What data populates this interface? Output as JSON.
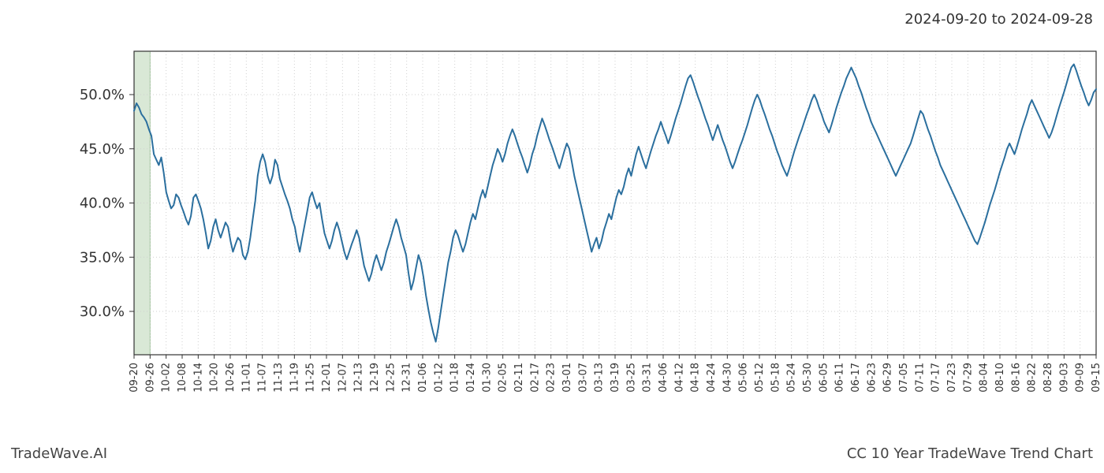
{
  "header": {
    "date_range": "2024-09-20 to 2024-09-28"
  },
  "footer": {
    "brand": "TradeWave.AI",
    "title": "CC 10 Year TradeWave Trend Chart"
  },
  "chart": {
    "type": "line",
    "background_color": "#ffffff",
    "plot_background": "#ffffff",
    "grid_color": "#d0d0d0",
    "grid_dash": "1,3",
    "axis_color": "#333333",
    "axis_width": 1.2,
    "line_color": "#2b6f9e",
    "line_width": 2.0,
    "highlight_band": {
      "x_start_index": 0,
      "x_end_index": 1,
      "fill": "#d9e8d6",
      "stroke": "#9ec29a",
      "stroke_width": 1
    },
    "y_axis": {
      "min": 26,
      "max": 54,
      "ticks": [
        30.0,
        35.0,
        40.0,
        45.0,
        50.0
      ],
      "tick_labels": [
        "30.0%",
        "35.0%",
        "40.0%",
        "45.0%",
        "50.0%"
      ],
      "label_fontsize": 18
    },
    "x_axis": {
      "label_fontsize": 13,
      "tick_labels": [
        "09-20",
        "09-26",
        "10-02",
        "10-08",
        "10-14",
        "10-20",
        "10-26",
        "11-01",
        "11-07",
        "11-13",
        "11-19",
        "11-25",
        "12-01",
        "12-07",
        "12-13",
        "12-19",
        "12-25",
        "12-31",
        "01-06",
        "01-12",
        "01-18",
        "01-24",
        "01-30",
        "02-05",
        "02-11",
        "02-17",
        "02-23",
        "03-01",
        "03-07",
        "03-13",
        "03-19",
        "03-25",
        "03-31",
        "04-06",
        "04-12",
        "04-18",
        "04-24",
        "04-30",
        "05-06",
        "05-12",
        "05-18",
        "05-24",
        "05-30",
        "06-05",
        "06-11",
        "06-17",
        "06-23",
        "06-29",
        "07-05",
        "07-11",
        "07-17",
        "07-23",
        "07-29",
        "08-04",
        "08-10",
        "08-16",
        "08-22",
        "08-28",
        "09-03",
        "09-09",
        "09-15"
      ]
    },
    "series": {
      "values": [
        48.5,
        49.2,
        48.8,
        48.2,
        47.9,
        47.5,
        46.8,
        46.2,
        44.5,
        44.0,
        43.5,
        44.2,
        42.8,
        41.0,
        40.2,
        39.5,
        39.8,
        40.8,
        40.5,
        39.8,
        39.2,
        38.5,
        38.0,
        38.8,
        40.5,
        40.8,
        40.2,
        39.5,
        38.5,
        37.2,
        35.8,
        36.5,
        37.8,
        38.5,
        37.5,
        36.8,
        37.5,
        38.2,
        37.8,
        36.5,
        35.5,
        36.2,
        36.8,
        36.5,
        35.2,
        34.8,
        35.5,
        36.8,
        38.5,
        40.2,
        42.5,
        43.8,
        44.5,
        43.8,
        42.5,
        41.8,
        42.5,
        44.0,
        43.5,
        42.2,
        41.5,
        40.8,
        40.2,
        39.5,
        38.5,
        37.8,
        36.5,
        35.5,
        36.8,
        38.0,
        39.2,
        40.5,
        41.0,
        40.2,
        39.5,
        40.0,
        38.5,
        37.2,
        36.5,
        35.8,
        36.5,
        37.5,
        38.2,
        37.5,
        36.5,
        35.5,
        34.8,
        35.5,
        36.2,
        36.8,
        37.5,
        36.8,
        35.5,
        34.2,
        33.5,
        32.8,
        33.5,
        34.5,
        35.2,
        34.5,
        33.8,
        34.5,
        35.5,
        36.2,
        37.0,
        37.8,
        38.5,
        37.8,
        36.8,
        36.0,
        35.2,
        33.5,
        32.0,
        32.8,
        34.0,
        35.2,
        34.5,
        33.2,
        31.5,
        30.2,
        29.0,
        28.0,
        27.2,
        28.5,
        30.0,
        31.5,
        33.0,
        34.5,
        35.5,
        36.8,
        37.5,
        37.0,
        36.2,
        35.5,
        36.2,
        37.2,
        38.2,
        39.0,
        38.5,
        39.5,
        40.5,
        41.2,
        40.5,
        41.5,
        42.5,
        43.5,
        44.2,
        45.0,
        44.5,
        43.8,
        44.5,
        45.5,
        46.2,
        46.8,
        46.2,
        45.5,
        44.8,
        44.2,
        43.5,
        42.8,
        43.5,
        44.5,
        45.2,
        46.2,
        47.0,
        47.8,
        47.2,
        46.5,
        45.8,
        45.2,
        44.5,
        43.8,
        43.2,
        44.0,
        44.8,
        45.5,
        45.0,
        43.8,
        42.5,
        41.5,
        40.5,
        39.5,
        38.5,
        37.5,
        36.5,
        35.5,
        36.2,
        36.8,
        35.8,
        36.5,
        37.5,
        38.2,
        39.0,
        38.5,
        39.5,
        40.5,
        41.2,
        40.8,
        41.5,
        42.5,
        43.2,
        42.5,
        43.5,
        44.5,
        45.2,
        44.5,
        43.8,
        43.2,
        44.0,
        44.8,
        45.5,
        46.2,
        46.8,
        47.5,
        46.8,
        46.2,
        45.5,
        46.2,
        47.0,
        47.8,
        48.5,
        49.2,
        50.0,
        50.8,
        51.5,
        51.8,
        51.2,
        50.5,
        49.8,
        49.2,
        48.5,
        47.8,
        47.2,
        46.5,
        45.8,
        46.5,
        47.2,
        46.5,
        45.8,
        45.2,
        44.5,
        43.8,
        43.2,
        43.8,
        44.5,
        45.2,
        45.8,
        46.5,
        47.2,
        48.0,
        48.8,
        49.5,
        50.0,
        49.5,
        48.8,
        48.2,
        47.5,
        46.8,
        46.2,
        45.5,
        44.8,
        44.2,
        43.5,
        43.0,
        42.5,
        43.2,
        44.0,
        44.8,
        45.5,
        46.2,
        46.8,
        47.5,
        48.2,
        48.8,
        49.5,
        50.0,
        49.5,
        48.8,
        48.2,
        47.5,
        47.0,
        46.5,
        47.2,
        48.0,
        48.8,
        49.5,
        50.2,
        50.8,
        51.5,
        52.0,
        52.5,
        52.0,
        51.5,
        50.8,
        50.2,
        49.5,
        48.8,
        48.2,
        47.5,
        47.0,
        46.5,
        46.0,
        45.5,
        45.0,
        44.5,
        44.0,
        43.5,
        43.0,
        42.5,
        43.0,
        43.5,
        44.0,
        44.5,
        45.0,
        45.5,
        46.2,
        47.0,
        47.8,
        48.5,
        48.2,
        47.5,
        46.8,
        46.2,
        45.5,
        44.8,
        44.2,
        43.5,
        43.0,
        42.5,
        42.0,
        41.5,
        41.0,
        40.5,
        40.0,
        39.5,
        39.0,
        38.5,
        38.0,
        37.5,
        37.0,
        36.5,
        36.2,
        36.8,
        37.5,
        38.2,
        39.0,
        39.8,
        40.5,
        41.2,
        42.0,
        42.8,
        43.5,
        44.2,
        45.0,
        45.5,
        45.0,
        44.5,
        45.2,
        46.0,
        46.8,
        47.5,
        48.2,
        49.0,
        49.5,
        49.0,
        48.5,
        48.0,
        47.5,
        47.0,
        46.5,
        46.0,
        46.5,
        47.2,
        48.0,
        48.8,
        49.5,
        50.2,
        51.0,
        51.8,
        52.5,
        52.8,
        52.2,
        51.5,
        50.8,
        50.2,
        49.5,
        49.0,
        49.5,
        50.2,
        50.5
      ]
    }
  }
}
